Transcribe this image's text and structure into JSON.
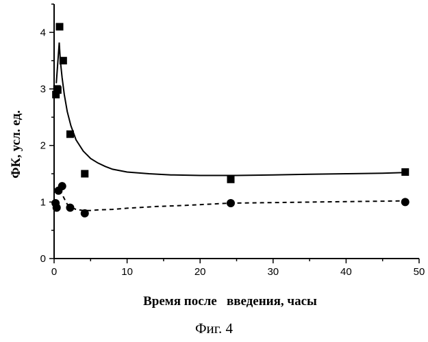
{
  "chart_data": {
    "type": "scatter",
    "xlabel": "Время после   введения, часы",
    "ylabel": "ФК, усл. ед.",
    "xlim": [
      0,
      50
    ],
    "ylim": [
      0,
      4.5
    ],
    "xticks": [
      0,
      10,
      20,
      30,
      40,
      50
    ],
    "yticks": [
      0,
      1,
      2,
      3,
      4
    ],
    "grid": false,
    "legend": "none",
    "series": [
      {
        "marker": "square",
        "points": [
          [
            0.25,
            2.9
          ],
          [
            0.4,
            3.0
          ],
          [
            0.5,
            2.98
          ],
          [
            0.75,
            4.1
          ],
          [
            1.25,
            3.5
          ],
          [
            2.2,
            2.2
          ],
          [
            4.2,
            1.5
          ],
          [
            24.2,
            1.4
          ],
          [
            48.1,
            1.53
          ]
        ],
        "fit_line": "solid",
        "fit": [
          [
            0.3,
            3.1
          ],
          [
            0.5,
            3.45
          ],
          [
            0.7,
            3.82
          ],
          [
            0.85,
            3.5
          ],
          [
            1.1,
            3.2
          ],
          [
            1.4,
            2.9
          ],
          [
            1.8,
            2.6
          ],
          [
            2.3,
            2.35
          ],
          [
            3,
            2.1
          ],
          [
            4,
            1.9
          ],
          [
            5,
            1.77
          ],
          [
            6,
            1.69
          ],
          [
            7,
            1.63
          ],
          [
            8,
            1.58
          ],
          [
            10,
            1.53
          ],
          [
            13,
            1.5
          ],
          [
            16,
            1.48
          ],
          [
            20,
            1.47
          ],
          [
            25,
            1.47
          ],
          [
            30,
            1.48
          ],
          [
            35,
            1.49
          ],
          [
            40,
            1.5
          ],
          [
            45,
            1.51
          ],
          [
            48,
            1.52
          ]
        ]
      },
      {
        "marker": "circle",
        "points": [
          [
            0.2,
            0.98
          ],
          [
            0.35,
            0.9
          ],
          [
            0.6,
            1.2
          ],
          [
            1.1,
            1.28
          ],
          [
            2.2,
            0.9
          ],
          [
            4.2,
            0.8
          ],
          [
            24.2,
            0.98
          ],
          [
            48.1,
            1.0
          ]
        ],
        "fit_line": "dashed",
        "fit": [
          [
            0.6,
            1.2
          ],
          [
            1.0,
            1.16
          ],
          [
            1.4,
            1.06
          ],
          [
            1.8,
            0.96
          ],
          [
            2.4,
            0.9
          ],
          [
            3,
            0.87
          ],
          [
            4,
            0.85
          ],
          [
            5,
            0.85
          ],
          [
            6,
            0.86
          ],
          [
            8,
            0.87
          ],
          [
            10,
            0.89
          ],
          [
            14,
            0.92
          ],
          [
            18,
            0.94
          ],
          [
            24,
            0.98
          ],
          [
            30,
            0.99
          ],
          [
            36,
            1.0
          ],
          [
            42,
            1.01
          ],
          [
            48,
            1.02
          ]
        ]
      }
    ]
  },
  "caption": "Фиг. 4"
}
